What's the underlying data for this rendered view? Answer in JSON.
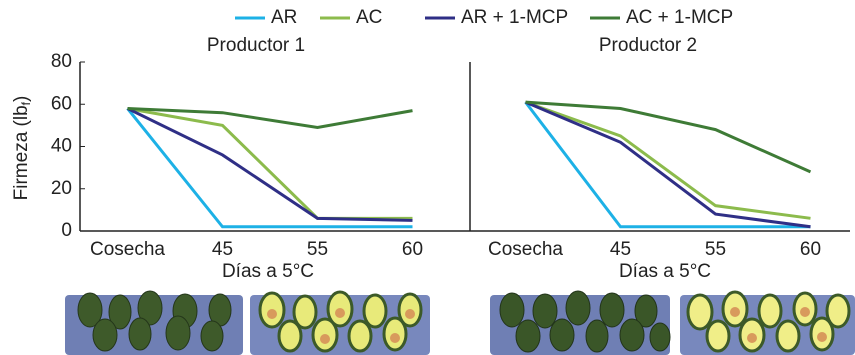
{
  "chart_data": [
    {
      "type": "line",
      "title": "Productor 1",
      "y_label": {
        "text": "Firmeza (lb",
        "sub": "f",
        "close": ")"
      },
      "x_label": "Días a 5°C",
      "categories": [
        "Cosecha",
        "45",
        "55",
        "60"
      ],
      "ylim": [
        0,
        80
      ],
      "yticks": [
        0,
        20,
        40,
        60,
        80
      ],
      "series": [
        {
          "name": "AR",
          "color": "#1db1e6",
          "values": [
            58,
            2,
            2,
            2
          ]
        },
        {
          "name": "AC",
          "color": "#8cbb4c",
          "values": [
            58,
            50,
            6,
            6
          ]
        },
        {
          "name": "AR + 1-MCP",
          "color": "#2f2f86",
          "values": [
            58,
            36,
            6,
            5
          ]
        },
        {
          "name": "AC + 1-MCP",
          "color": "#3e7b36",
          "values": [
            58,
            56,
            49,
            57
          ]
        }
      ]
    },
    {
      "type": "line",
      "title": "Productor 2",
      "x_label": "Días a 5°C",
      "categories": [
        "Cosecha",
        "45",
        "55",
        "60"
      ],
      "ylim": [
        0,
        80
      ],
      "series": [
        {
          "name": "AR",
          "color": "#1db1e6",
          "values": [
            61,
            2,
            2,
            2
          ]
        },
        {
          "name": "AC",
          "color": "#8cbb4c",
          "values": [
            61,
            45,
            12,
            6
          ]
        },
        {
          "name": "AR + 1-MCP",
          "color": "#2f2f86",
          "values": [
            61,
            42,
            8,
            2
          ]
        },
        {
          "name": "AC + 1-MCP",
          "color": "#3e7b36",
          "values": [
            61,
            58,
            48,
            28
          ]
        }
      ]
    }
  ]
}
